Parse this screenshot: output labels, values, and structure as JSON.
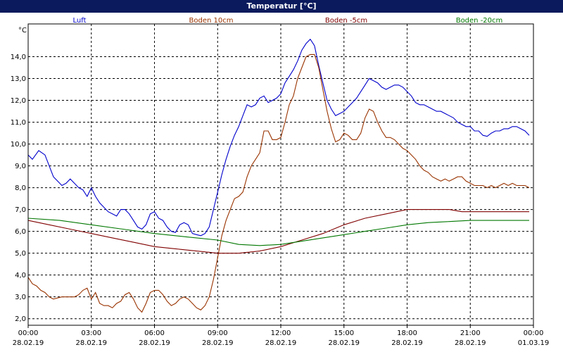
{
  "window": {
    "title": "Temperatur [°C]"
  },
  "chart_data": {
    "type": "line",
    "title": "Temperatur [°C]",
    "ylabel": "°C",
    "xlabel": "",
    "ylim": [
      1.7,
      15.5
    ],
    "xlim_hours": [
      0,
      24
    ],
    "yticks": [
      "2,0",
      "3,0",
      "4,0",
      "5,0",
      "6,0",
      "7,0",
      "8,0",
      "9,0",
      "10,0",
      "11,0",
      "12,0",
      "13,0",
      "14,0"
    ],
    "ytick_values": [
      2,
      3,
      4,
      5,
      6,
      7,
      8,
      9,
      10,
      11,
      12,
      13,
      14
    ],
    "xticks": [
      {
        "time": "00:00",
        "date": "28.02.19"
      },
      {
        "time": "03:00",
        "date": "28.02.19"
      },
      {
        "time": "06:00",
        "date": "28.02.19"
      },
      {
        "time": "09:00",
        "date": "28.02.19"
      },
      {
        "time": "12:00",
        "date": "28.02.19"
      },
      {
        "time": "15:00",
        "date": "28.02.19"
      },
      {
        "time": "18:00",
        "date": "28.02.19"
      },
      {
        "time": "21:00",
        "date": "28.02.19"
      },
      {
        "time": "00:00",
        "date": "01.03.19"
      }
    ],
    "grid": true,
    "legend_position": "top",
    "series": [
      {
        "name": "Luft",
        "color": "#0000cc",
        "points": [
          [
            0,
            9.5
          ],
          [
            0.2,
            9.3
          ],
          [
            0.5,
            9.7
          ],
          [
            0.8,
            9.5
          ],
          [
            1.0,
            9.0
          ],
          [
            1.2,
            8.5
          ],
          [
            1.4,
            8.3
          ],
          [
            1.6,
            8.1
          ],
          [
            1.8,
            8.2
          ],
          [
            2.0,
            8.4
          ],
          [
            2.2,
            8.2
          ],
          [
            2.4,
            8.0
          ],
          [
            2.6,
            7.9
          ],
          [
            2.8,
            7.6
          ],
          [
            3.0,
            8.0
          ],
          [
            3.2,
            7.6
          ],
          [
            3.4,
            7.3
          ],
          [
            3.6,
            7.1
          ],
          [
            3.8,
            6.9
          ],
          [
            4.0,
            6.8
          ],
          [
            4.2,
            6.7
          ],
          [
            4.4,
            7.0
          ],
          [
            4.6,
            7.0
          ],
          [
            4.8,
            6.8
          ],
          [
            5.0,
            6.5
          ],
          [
            5.2,
            6.2
          ],
          [
            5.4,
            6.1
          ],
          [
            5.6,
            6.3
          ],
          [
            5.8,
            6.8
          ],
          [
            6.0,
            6.9
          ],
          [
            6.2,
            6.6
          ],
          [
            6.4,
            6.5
          ],
          [
            6.6,
            6.2
          ],
          [
            6.8,
            6.0
          ],
          [
            7.0,
            5.95
          ],
          [
            7.2,
            6.3
          ],
          [
            7.4,
            6.4
          ],
          [
            7.6,
            6.3
          ],
          [
            7.8,
            5.9
          ],
          [
            8.0,
            5.85
          ],
          [
            8.2,
            5.8
          ],
          [
            8.4,
            5.9
          ],
          [
            8.6,
            6.2
          ],
          [
            8.8,
            7.0
          ],
          [
            9.0,
            7.8
          ],
          [
            9.2,
            8.6
          ],
          [
            9.4,
            9.3
          ],
          [
            9.6,
            9.9
          ],
          [
            9.8,
            10.4
          ],
          [
            10.0,
            10.8
          ],
          [
            10.2,
            11.3
          ],
          [
            10.4,
            11.8
          ],
          [
            10.6,
            11.7
          ],
          [
            10.8,
            11.8
          ],
          [
            11.0,
            12.1
          ],
          [
            11.2,
            12.2
          ],
          [
            11.4,
            11.9
          ],
          [
            11.6,
            12.0
          ],
          [
            11.8,
            12.1
          ],
          [
            12.0,
            12.3
          ],
          [
            12.2,
            12.8
          ],
          [
            12.4,
            13.1
          ],
          [
            12.6,
            13.4
          ],
          [
            12.8,
            13.8
          ],
          [
            13.0,
            14.3
          ],
          [
            13.2,
            14.6
          ],
          [
            13.4,
            14.8
          ],
          [
            13.6,
            14.5
          ],
          [
            13.8,
            13.6
          ],
          [
            14.0,
            12.8
          ],
          [
            14.2,
            12.0
          ],
          [
            14.4,
            11.6
          ],
          [
            14.6,
            11.3
          ],
          [
            14.8,
            11.4
          ],
          [
            15.0,
            11.5
          ],
          [
            15.2,
            11.7
          ],
          [
            15.4,
            11.9
          ],
          [
            15.6,
            12.1
          ],
          [
            15.8,
            12.4
          ],
          [
            16.0,
            12.7
          ],
          [
            16.2,
            13.0
          ],
          [
            16.4,
            12.9
          ],
          [
            16.6,
            12.8
          ],
          [
            16.8,
            12.6
          ],
          [
            17.0,
            12.5
          ],
          [
            17.2,
            12.6
          ],
          [
            17.4,
            12.7
          ],
          [
            17.6,
            12.7
          ],
          [
            17.8,
            12.6
          ],
          [
            18.0,
            12.4
          ],
          [
            18.2,
            12.2
          ],
          [
            18.4,
            11.9
          ],
          [
            18.6,
            11.8
          ],
          [
            18.8,
            11.8
          ],
          [
            19.0,
            11.7
          ],
          [
            19.2,
            11.6
          ],
          [
            19.4,
            11.5
          ],
          [
            19.6,
            11.5
          ],
          [
            19.8,
            11.4
          ],
          [
            20.0,
            11.3
          ],
          [
            20.2,
            11.2
          ],
          [
            20.4,
            11.0
          ],
          [
            20.6,
            10.9
          ],
          [
            20.8,
            10.8
          ],
          [
            21.0,
            10.8
          ],
          [
            21.2,
            10.6
          ],
          [
            21.4,
            10.6
          ],
          [
            21.6,
            10.4
          ],
          [
            21.8,
            10.35
          ],
          [
            22.0,
            10.5
          ],
          [
            22.2,
            10.6
          ],
          [
            22.4,
            10.6
          ],
          [
            22.6,
            10.7
          ],
          [
            22.8,
            10.7
          ],
          [
            23.0,
            10.8
          ],
          [
            23.2,
            10.8
          ],
          [
            23.4,
            10.7
          ],
          [
            23.6,
            10.6
          ],
          [
            23.8,
            10.4
          ]
        ]
      },
      {
        "name": "Boden 10cm",
        "color": "#993300",
        "points": [
          [
            0,
            3.9
          ],
          [
            0.2,
            3.6
          ],
          [
            0.4,
            3.5
          ],
          [
            0.6,
            3.3
          ],
          [
            0.8,
            3.2
          ],
          [
            1.0,
            3.0
          ],
          [
            1.2,
            2.9
          ],
          [
            1.4,
            2.95
          ],
          [
            1.6,
            3.0
          ],
          [
            1.8,
            3.0
          ],
          [
            2.0,
            3.0
          ],
          [
            2.2,
            3.0
          ],
          [
            2.4,
            3.1
          ],
          [
            2.6,
            3.3
          ],
          [
            2.8,
            3.4
          ],
          [
            3.0,
            2.9
          ],
          [
            3.2,
            3.2
          ],
          [
            3.4,
            2.7
          ],
          [
            3.6,
            2.6
          ],
          [
            3.8,
            2.6
          ],
          [
            4.0,
            2.5
          ],
          [
            4.2,
            2.7
          ],
          [
            4.4,
            2.8
          ],
          [
            4.6,
            3.1
          ],
          [
            4.8,
            3.2
          ],
          [
            5.0,
            2.9
          ],
          [
            5.2,
            2.5
          ],
          [
            5.4,
            2.3
          ],
          [
            5.6,
            2.7
          ],
          [
            5.8,
            3.2
          ],
          [
            6.0,
            3.3
          ],
          [
            6.2,
            3.3
          ],
          [
            6.4,
            3.1
          ],
          [
            6.6,
            2.8
          ],
          [
            6.8,
            2.6
          ],
          [
            7.0,
            2.7
          ],
          [
            7.2,
            2.9
          ],
          [
            7.4,
            3.0
          ],
          [
            7.6,
            2.9
          ],
          [
            7.8,
            2.7
          ],
          [
            8.0,
            2.5
          ],
          [
            8.2,
            2.4
          ],
          [
            8.4,
            2.6
          ],
          [
            8.6,
            3.0
          ],
          [
            8.8,
            3.8
          ],
          [
            9.0,
            4.8
          ],
          [
            9.2,
            5.8
          ],
          [
            9.4,
            6.5
          ],
          [
            9.6,
            7.0
          ],
          [
            9.8,
            7.5
          ],
          [
            10.0,
            7.6
          ],
          [
            10.2,
            7.8
          ],
          [
            10.4,
            8.5
          ],
          [
            10.6,
            9.0
          ],
          [
            10.8,
            9.3
          ],
          [
            11.0,
            9.6
          ],
          [
            11.2,
            10.6
          ],
          [
            11.4,
            10.6
          ],
          [
            11.6,
            10.2
          ],
          [
            11.8,
            10.2
          ],
          [
            12.0,
            10.3
          ],
          [
            12.2,
            11.0
          ],
          [
            12.4,
            11.8
          ],
          [
            12.6,
            12.2
          ],
          [
            12.8,
            13.0
          ],
          [
            13.0,
            13.5
          ],
          [
            13.2,
            14.0
          ],
          [
            13.4,
            14.1
          ],
          [
            13.6,
            14.1
          ],
          [
            13.8,
            13.5
          ],
          [
            14.0,
            12.5
          ],
          [
            14.2,
            11.5
          ],
          [
            14.4,
            10.7
          ],
          [
            14.6,
            10.1
          ],
          [
            14.8,
            10.2
          ],
          [
            15.0,
            10.5
          ],
          [
            15.2,
            10.4
          ],
          [
            15.4,
            10.2
          ],
          [
            15.6,
            10.2
          ],
          [
            15.8,
            10.5
          ],
          [
            16.0,
            11.2
          ],
          [
            16.2,
            11.6
          ],
          [
            16.4,
            11.5
          ],
          [
            16.6,
            11.0
          ],
          [
            16.8,
            10.6
          ],
          [
            17.0,
            10.3
          ],
          [
            17.2,
            10.3
          ],
          [
            17.4,
            10.2
          ],
          [
            17.6,
            10.0
          ],
          [
            17.8,
            9.8
          ],
          [
            18.0,
            9.7
          ],
          [
            18.2,
            9.5
          ],
          [
            18.4,
            9.3
          ],
          [
            18.6,
            9.0
          ],
          [
            18.8,
            8.8
          ],
          [
            19.0,
            8.7
          ],
          [
            19.2,
            8.5
          ],
          [
            19.4,
            8.4
          ],
          [
            19.6,
            8.3
          ],
          [
            19.8,
            8.4
          ],
          [
            20.0,
            8.3
          ],
          [
            20.2,
            8.4
          ],
          [
            20.4,
            8.5
          ],
          [
            20.6,
            8.5
          ],
          [
            20.8,
            8.3
          ],
          [
            21.0,
            8.2
          ],
          [
            21.2,
            8.1
          ],
          [
            21.4,
            8.1
          ],
          [
            21.6,
            8.1
          ],
          [
            21.8,
            8.0
          ],
          [
            22.0,
            8.1
          ],
          [
            22.2,
            8.0
          ],
          [
            22.4,
            8.1
          ],
          [
            22.6,
            8.2
          ],
          [
            22.8,
            8.1
          ],
          [
            23.0,
            8.2
          ],
          [
            23.2,
            8.1
          ],
          [
            23.4,
            8.1
          ],
          [
            23.6,
            8.1
          ],
          [
            23.8,
            8.0
          ]
        ]
      },
      {
        "name": "Boden -5cm",
        "color": "#800000",
        "points": [
          [
            0,
            6.5
          ],
          [
            1.0,
            6.3
          ],
          [
            2.0,
            6.1
          ],
          [
            3.0,
            5.9
          ],
          [
            4.0,
            5.7
          ],
          [
            5.0,
            5.5
          ],
          [
            6.0,
            5.3
          ],
          [
            7.0,
            5.2
          ],
          [
            8.0,
            5.1
          ],
          [
            8.5,
            5.05
          ],
          [
            9.0,
            5.0
          ],
          [
            10.0,
            5.0
          ],
          [
            11.0,
            5.1
          ],
          [
            12.0,
            5.3
          ],
          [
            13.0,
            5.6
          ],
          [
            14.0,
            5.9
          ],
          [
            15.0,
            6.3
          ],
          [
            16.0,
            6.6
          ],
          [
            17.0,
            6.8
          ],
          [
            18.0,
            7.0
          ],
          [
            19.0,
            7.0
          ],
          [
            20.0,
            7.0
          ],
          [
            20.6,
            6.9
          ],
          [
            22.0,
            6.9
          ],
          [
            23.8,
            6.9
          ]
        ]
      },
      {
        "name": "Boden -20cm",
        "color": "#007700",
        "points": [
          [
            0,
            6.6
          ],
          [
            1.5,
            6.5
          ],
          [
            3.0,
            6.3
          ],
          [
            4.5,
            6.1
          ],
          [
            6.0,
            5.9
          ],
          [
            7.5,
            5.75
          ],
          [
            9.0,
            5.6
          ],
          [
            10.0,
            5.4
          ],
          [
            11.0,
            5.35
          ],
          [
            12.0,
            5.4
          ],
          [
            13.0,
            5.55
          ],
          [
            14.0,
            5.7
          ],
          [
            15.0,
            5.85
          ],
          [
            16.0,
            6.0
          ],
          [
            17.0,
            6.15
          ],
          [
            18.0,
            6.3
          ],
          [
            19.0,
            6.4
          ],
          [
            20.0,
            6.45
          ],
          [
            21.0,
            6.5
          ],
          [
            23.8,
            6.5
          ]
        ]
      }
    ]
  }
}
